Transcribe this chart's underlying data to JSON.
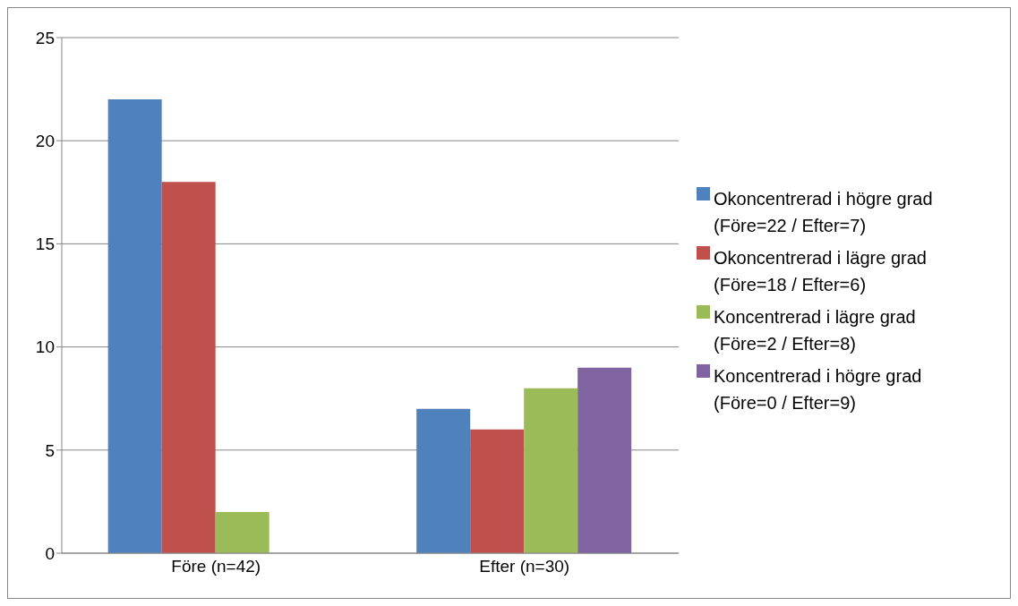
{
  "chart_data": {
    "type": "bar",
    "categories": [
      "Före (n=42)",
      "Efter (n=30)"
    ],
    "series": [
      {
        "name": "Okoncentrerad i högre grad (Före=22 / Efter=7)",
        "color": "#4f81bd",
        "values": [
          22,
          7
        ]
      },
      {
        "name": "Okoncentrerad i lägre grad (Före=18 / Efter=6)",
        "color": "#c0504d",
        "values": [
          18,
          6
        ]
      },
      {
        "name": "Koncentrerad i lägre grad (Före=2 / Efter=8)",
        "color": "#9bbb59",
        "values": [
          2,
          8
        ]
      },
      {
        "name": "Koncentrerad i högre grad (Före=0 / Efter=9)",
        "color": "#8064a2",
        "values": [
          0,
          9
        ]
      }
    ],
    "ylim": [
      0,
      25
    ],
    "yticks": [
      0,
      5,
      10,
      15,
      20,
      25
    ],
    "grid": "y",
    "legend": "right"
  }
}
